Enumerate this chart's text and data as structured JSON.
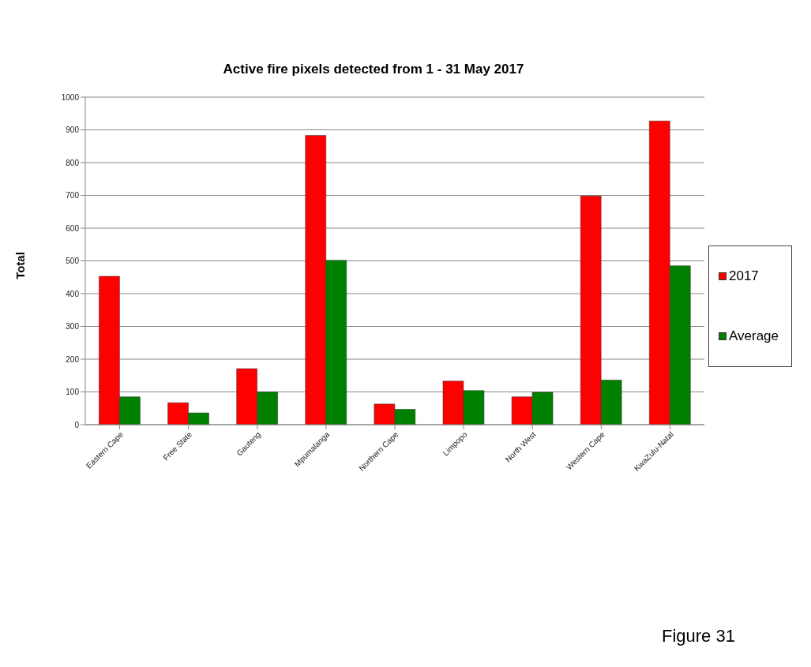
{
  "chart_data": {
    "type": "bar",
    "title": "Active fire pixels detected from 1 - 31 May 2017",
    "ylabel": "Total",
    "categories": [
      "Eastern Cape",
      "Free State",
      "Gauteng",
      "Mpumalanga",
      "Northern Cape",
      "Limpopo",
      "North West",
      "Western Cape",
      "KwaZulu-Natal"
    ],
    "series": [
      {
        "name": "2017",
        "color": "#ff0000",
        "values": [
          453,
          67,
          171,
          883,
          63,
          133,
          85,
          698,
          927
        ]
      },
      {
        "name": "Average",
        "color": "#008000",
        "values": [
          85,
          36,
          100,
          502,
          47,
          104,
          99,
          136,
          485
        ]
      }
    ],
    "ylim": [
      0,
      1000
    ],
    "yticks": [
      0,
      100,
      200,
      300,
      400,
      500,
      600,
      700,
      800,
      900,
      1000
    ],
    "grid": "y",
    "legend": "right",
    "annotations": [
      "Figure 31"
    ]
  }
}
